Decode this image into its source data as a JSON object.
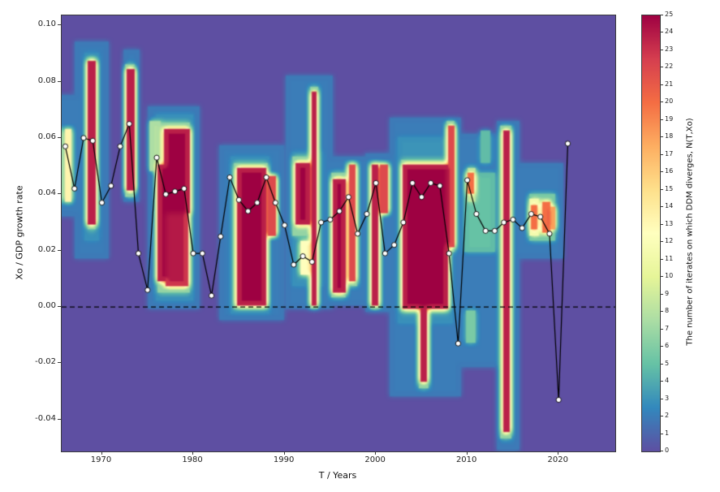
{
  "figure": {
    "background": "#ffffff",
    "spine_color": "#3a3a3a"
  },
  "chart_data": {
    "type": "heatmap+line",
    "title": "",
    "xlabel": "T / Years",
    "ylabel": "Xo / GDP growth rate",
    "x_range": [
      1965.6,
      2026.2
    ],
    "y_range": [
      -0.0513,
      0.1035
    ],
    "x_ticks": [
      1970,
      1980,
      1990,
      2000,
      2010,
      2020
    ],
    "x_tick_labels": [
      "1970",
      "1980",
      "1990",
      "2000",
      "2010",
      "2020"
    ],
    "y_tick_values": [
      0.1,
      0.08,
      0.06,
      0.04,
      0.02,
      0.0,
      -0.02,
      -0.04
    ],
    "y_tick_labels": [
      "0.10",
      "0.08",
      "0.06",
      "0.04",
      "0.02",
      "0.00",
      "-0.02",
      "-0.04"
    ],
    "grid": false,
    "zero_line": {
      "y": 0.0,
      "style": "dashed",
      "color": "#000000"
    },
    "colorbar": {
      "min": 0,
      "max": 25,
      "ticks": [
        0,
        1,
        2,
        3,
        4,
        5,
        6,
        7,
        8,
        9,
        10,
        11,
        12,
        13,
        14,
        15,
        16,
        17,
        18,
        19,
        20,
        21,
        22,
        23,
        24,
        25
      ],
      "label": "The number of iterates on which DDM diverges, N(T,Xo)",
      "colormap_name": "Spectral_r",
      "stops": [
        "#5e4fa2",
        "#3288bd",
        "#66c2a5",
        "#abdda4",
        "#e6f598",
        "#ffffbf",
        "#fee08b",
        "#fdae61",
        "#f46d43",
        "#d53e4f",
        "#9e0142"
      ]
    },
    "heatmap": {
      "background_value": 0,
      "feature_format": [
        "x_start_year",
        "x_end_year",
        "y_min_rate",
        "y_max_rate",
        "value"
      ],
      "features": [
        [
          1965.7,
          1966.9,
          0.033,
          0.075,
          2
        ],
        [
          1967.1,
          1970.4,
          0.018,
          0.094,
          2
        ],
        [
          1968.2,
          1969.4,
          0.024,
          0.09,
          3
        ],
        [
          1972.4,
          1973.9,
          0.038,
          0.091,
          2
        ],
        [
          1975.1,
          1980.4,
          0.0,
          0.071,
          2
        ],
        [
          1976.0,
          1979.7,
          0.003,
          0.068,
          3
        ],
        [
          1983.0,
          1989.6,
          -0.004,
          0.057,
          2
        ],
        [
          1984.2,
          1988.1,
          -0.002,
          0.053,
          3
        ],
        [
          1990.2,
          1995.1,
          0.0,
          0.082,
          2
        ],
        [
          1991.0,
          1994.0,
          0.008,
          0.055,
          3
        ],
        [
          1995.1,
          1998.6,
          0.001,
          0.053,
          2
        ],
        [
          1999.0,
          2001.3,
          -0.001,
          0.054,
          2
        ],
        [
          2001.5,
          2009.1,
          -0.031,
          0.067,
          2
        ],
        [
          2002.5,
          2008.1,
          -0.005,
          0.06,
          3
        ],
        [
          2009.4,
          2013.1,
          -0.021,
          0.061,
          2
        ],
        [
          2013.3,
          2015.4,
          -0.05,
          0.066,
          2
        ],
        [
          2015.6,
          2020.2,
          0.018,
          0.051,
          2
        ],
        [
          1968.5,
          1969.15,
          0.028,
          0.088,
          7
        ],
        [
          1972.7,
          1973.4,
          0.04,
          0.086,
          7
        ],
        [
          1975.3,
          1976.1,
          0.049,
          0.066,
          8
        ],
        [
          1976.1,
          1979.45,
          0.006,
          0.065,
          7
        ],
        [
          1984.55,
          1987.9,
          0.0,
          0.051,
          7
        ],
        [
          1991.0,
          1992.8,
          0.026,
          0.053,
          7
        ],
        [
          1992.8,
          1993.45,
          0.0,
          0.078,
          7
        ],
        [
          1995.25,
          1996.5,
          0.004,
          0.047,
          7
        ],
        [
          1997.0,
          1997.7,
          0.008,
          0.051,
          7
        ],
        [
          1999.4,
          2000.1,
          0.0,
          0.051,
          7
        ],
        [
          2002.8,
          2007.7,
          -0.001,
          0.052,
          7
        ],
        [
          2004.8,
          2005.5,
          -0.028,
          0.0,
          7
        ],
        [
          2007.85,
          2008.4,
          0.02,
          0.066,
          7
        ],
        [
          2009.8,
          2012.7,
          0.02,
          0.047,
          5
        ],
        [
          2010.0,
          2010.6,
          -0.012,
          -0.002,
          6
        ],
        [
          2013.75,
          2014.55,
          -0.046,
          0.064,
          7
        ],
        [
          2016.8,
          2019.4,
          0.024,
          0.04,
          6
        ],
        [
          2011.5,
          2012.2,
          0.052,
          0.062,
          5
        ],
        [
          2010.05,
          2010.65,
          0.038,
          0.049,
          9
        ],
        [
          1966.0,
          1966.45,
          0.038,
          0.063,
          14
        ],
        [
          1991.8,
          1992.5,
          0.012,
          0.023,
          13
        ],
        [
          2016.9,
          2017.5,
          0.026,
          0.038,
          12
        ],
        [
          1968.62,
          1969.02,
          0.03,
          0.087,
          25
        ],
        [
          1972.8,
          1973.25,
          0.042,
          0.084,
          25
        ],
        [
          1976.2,
          1976.75,
          0.01,
          0.05,
          25
        ],
        [
          1976.95,
          1979.3,
          0.034,
          0.063,
          25
        ],
        [
          1977.15,
          1979.2,
          0.008,
          0.036,
          24
        ],
        [
          1984.8,
          1987.65,
          0.001,
          0.049,
          25
        ],
        [
          1988.3,
          1988.85,
          0.026,
          0.046,
          23
        ],
        [
          1991.2,
          1992.6,
          0.03,
          0.051,
          25
        ],
        [
          1992.98,
          1993.3,
          0.001,
          0.076,
          25
        ],
        [
          1995.4,
          1996.35,
          0.006,
          0.045,
          25
        ],
        [
          1997.15,
          1997.55,
          0.01,
          0.05,
          23
        ],
        [
          1999.55,
          1999.92,
          0.001,
          0.05,
          25
        ],
        [
          2000.6,
          2001.0,
          0.034,
          0.05,
          23
        ],
        [
          2003.0,
          2007.55,
          0.0,
          0.05,
          25
        ],
        [
          2005.0,
          2005.38,
          -0.026,
          0.0,
          25
        ],
        [
          2008.0,
          2008.3,
          0.022,
          0.064,
          23
        ],
        [
          2014.0,
          2014.38,
          -0.044,
          0.062,
          25
        ],
        [
          2010.15,
          2010.5,
          0.041,
          0.047,
          21
        ],
        [
          2017.0,
          2017.35,
          0.028,
          0.036,
          21
        ],
        [
          2018.3,
          2018.75,
          0.027,
          0.037,
          21
        ],
        [
          2019.0,
          2019.35,
          0.028,
          0.035,
          19
        ]
      ]
    },
    "series": [
      {
        "name": "GDP growth rate",
        "type": "line+markers",
        "line_color": "#000000",
        "marker_fill": "#ffffff",
        "marker_edge": "#000000",
        "x": [
          1966,
          1967,
          1968,
          1969,
          1970,
          1971,
          1972,
          1973,
          1974,
          1975,
          1976,
          1977,
          1978,
          1979,
          1980,
          1981,
          1982,
          1983,
          1984,
          1985,
          1986,
          1987,
          1988,
          1989,
          1990,
          1991,
          1992,
          1993,
          1994,
          1995,
          1996,
          1997,
          1998,
          1999,
          2000,
          2001,
          2002,
          2003,
          2004,
          2005,
          2006,
          2007,
          2008,
          2009,
          2010,
          2011,
          2012,
          2013,
          2014,
          2015,
          2016,
          2017,
          2018,
          2019,
          2020,
          2021
        ],
        "y": [
          0.057,
          0.042,
          0.06,
          0.059,
          0.037,
          0.043,
          0.057,
          0.065,
          0.019,
          0.006,
          0.053,
          0.04,
          0.041,
          0.042,
          0.019,
          0.019,
          0.004,
          0.025,
          0.046,
          0.038,
          0.034,
          0.037,
          0.046,
          0.037,
          0.029,
          0.015,
          0.018,
          0.016,
          0.03,
          0.031,
          0.034,
          0.039,
          0.026,
          0.033,
          0.044,
          0.019,
          0.022,
          0.03,
          0.044,
          0.039,
          0.044,
          0.043,
          0.019,
          -0.013,
          0.045,
          0.033,
          0.027,
          0.027,
          0.03,
          0.031,
          0.028,
          0.033,
          0.032,
          0.026,
          -0.033,
          0.058
        ]
      }
    ]
  }
}
